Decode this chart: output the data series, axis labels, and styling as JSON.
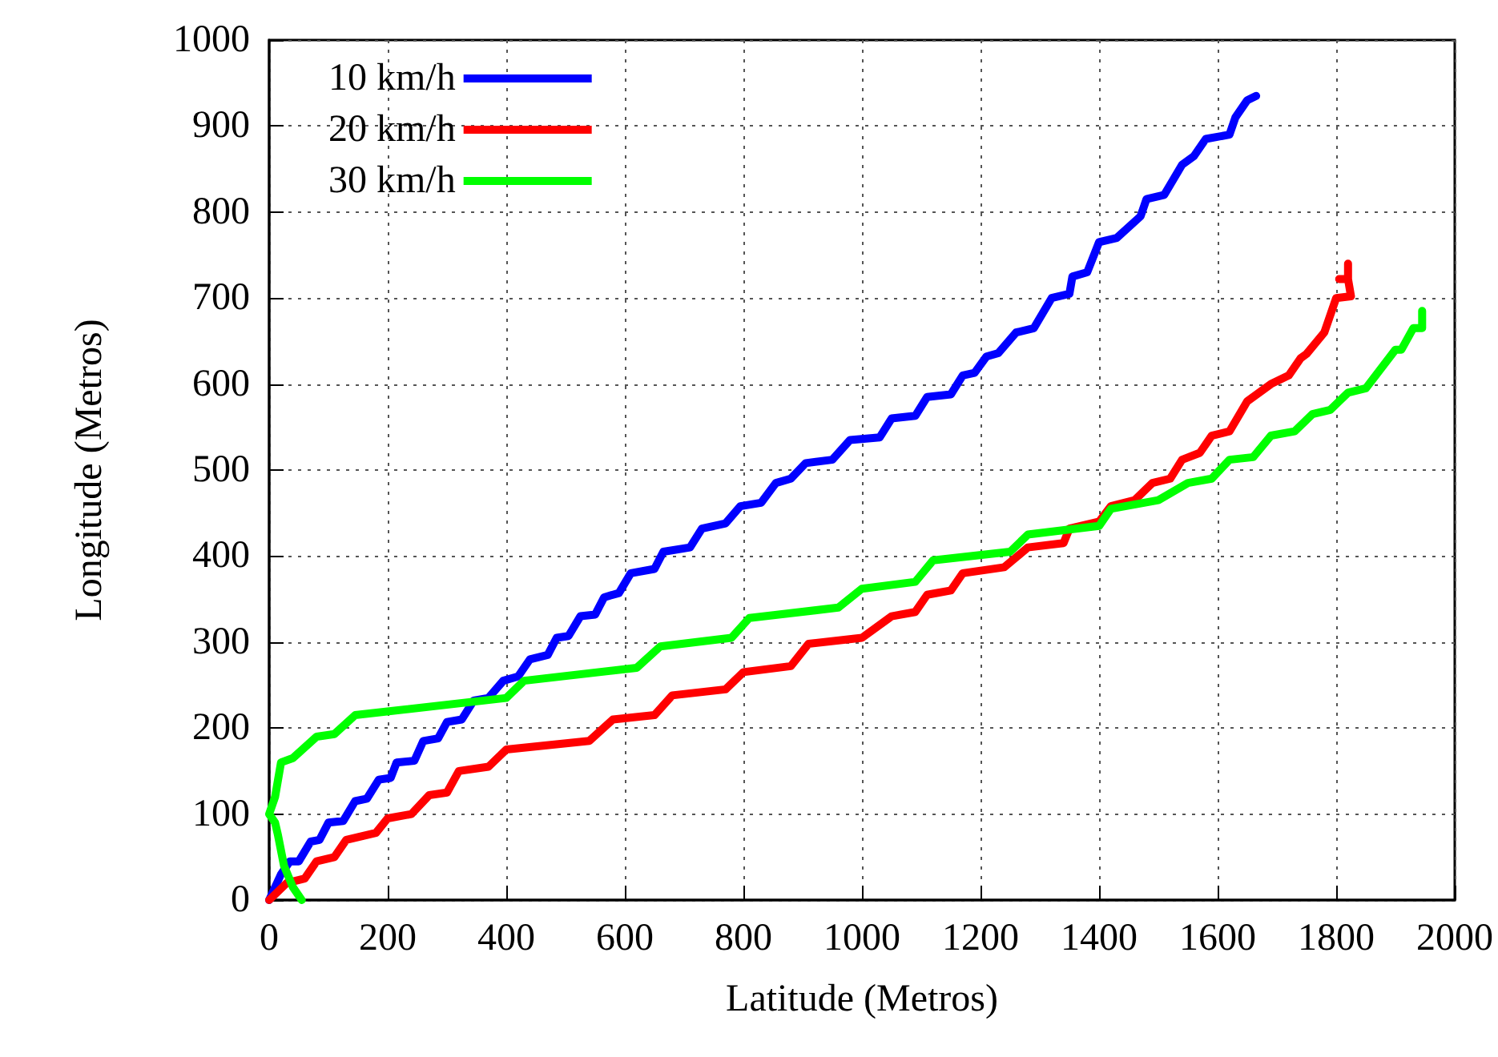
{
  "chart_data": {
    "type": "line",
    "xlabel": "Latitude (Metros)",
    "ylabel": "Longitude (Metros)",
    "xlim": [
      0,
      2000
    ],
    "xticks": [
      0,
      200,
      400,
      600,
      800,
      1000,
      1200,
      1400,
      1600,
      1800,
      2000
    ],
    "ylim": [
      0,
      1000
    ],
    "yticks": [
      0,
      100,
      200,
      300,
      400,
      500,
      600,
      700,
      800,
      900,
      1000
    ],
    "grid": true,
    "legend": "top left",
    "marker": "none",
    "line_style": "solid",
    "series": [
      {
        "name": "10 km/h",
        "color": "#0000ff",
        "x": [
          0,
          20,
          35,
          50,
          70,
          85,
          100,
          125,
          145,
          165,
          185,
          205,
          215,
          245,
          260,
          285,
          300,
          325,
          345,
          370,
          395,
          420,
          440,
          470,
          485,
          505,
          525,
          550,
          565,
          590,
          610,
          650,
          665,
          710,
          730,
          770,
          795,
          830,
          855,
          880,
          905,
          950,
          980,
          1030,
          1050,
          1090,
          1110,
          1150,
          1170,
          1190,
          1210,
          1230,
          1260,
          1290,
          1320,
          1350,
          1355,
          1380,
          1400,
          1430,
          1470,
          1480,
          1510,
          1540,
          1560,
          1580,
          1620,
          1630,
          1650,
          1665
        ],
        "values": [
          0,
          30,
          45,
          45,
          68,
          70,
          90,
          92,
          115,
          118,
          140,
          142,
          160,
          162,
          185,
          188,
          207,
          210,
          232,
          235,
          255,
          260,
          280,
          285,
          305,
          307,
          330,
          332,
          352,
          357,
          380,
          385,
          405,
          410,
          432,
          438,
          458,
          462,
          485,
          490,
          508,
          512,
          535,
          538,
          560,
          563,
          585,
          588,
          610,
          613,
          632,
          636,
          660,
          665,
          700,
          705,
          725,
          730,
          765,
          770,
          795,
          815,
          820,
          855,
          865,
          885,
          890,
          910,
          930,
          935
        ]
      },
      {
        "name": "20 km/h",
        "color": "#ff0000",
        "x": [
          0,
          30,
          60,
          80,
          110,
          130,
          180,
          200,
          240,
          270,
          300,
          320,
          370,
          400,
          540,
          580,
          650,
          680,
          770,
          800,
          880,
          910,
          1000,
          1050,
          1090,
          1110,
          1150,
          1170,
          1240,
          1280,
          1340,
          1350,
          1400,
          1420,
          1460,
          1490,
          1520,
          1540,
          1570,
          1590,
          1620,
          1650,
          1690,
          1720,
          1740,
          1750,
          1780,
          1800,
          1825,
          1820,
          1805,
          1820,
          1820
        ],
        "values": [
          0,
          20,
          25,
          45,
          50,
          70,
          78,
          95,
          100,
          122,
          125,
          150,
          155,
          175,
          185,
          210,
          215,
          238,
          245,
          265,
          272,
          298,
          305,
          330,
          335,
          355,
          360,
          380,
          387,
          410,
          415,
          432,
          440,
          458,
          465,
          485,
          490,
          512,
          520,
          540,
          545,
          580,
          600,
          610,
          630,
          635,
          660,
          700,
          702,
          722,
          722,
          722,
          740
        ]
      },
      {
        "name": "30 km/h",
        "color": "#00ff00",
        "x": [
          55,
          40,
          25,
          15,
          10,
          0,
          10,
          20,
          40,
          80,
          110,
          145,
          400,
          430,
          620,
          660,
          780,
          810,
          960,
          1000,
          1090,
          1120,
          1250,
          1280,
          1400,
          1420,
          1500,
          1550,
          1590,
          1620,
          1660,
          1690,
          1730,
          1760,
          1790,
          1820,
          1850,
          1900,
          1910,
          1930,
          1945,
          1945
        ],
        "values": [
          0,
          15,
          40,
          75,
          90,
          100,
          120,
          160,
          165,
          190,
          193,
          215,
          235,
          255,
          270,
          295,
          305,
          328,
          340,
          362,
          370,
          395,
          405,
          425,
          435,
          455,
          465,
          485,
          490,
          512,
          515,
          540,
          545,
          565,
          570,
          590,
          595,
          640,
          640,
          665,
          665,
          685
        ]
      }
    ]
  }
}
